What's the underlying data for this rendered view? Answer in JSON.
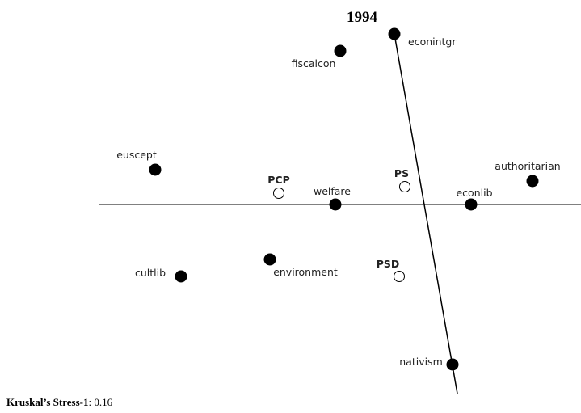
{
  "title": "1994",
  "nodes": [
    {
      "label": "econintgr",
      "kind": "issue"
    },
    {
      "label": "fiscalcon",
      "kind": "issue"
    },
    {
      "label": "euscept",
      "kind": "issue"
    },
    {
      "label": "welfare",
      "kind": "issue"
    },
    {
      "label": "econlib",
      "kind": "issue"
    },
    {
      "label": "authoritarian",
      "kind": "issue"
    },
    {
      "label": "cultlib",
      "kind": "issue"
    },
    {
      "label": "environment",
      "kind": "issue"
    },
    {
      "label": "nativism",
      "kind": "issue"
    },
    {
      "label": "PCP",
      "kind": "party"
    },
    {
      "label": "PS",
      "kind": "party"
    },
    {
      "label": "PSD",
      "kind": "party"
    }
  ],
  "footer": {
    "label": "Kruskal’s Stress-1",
    "text": ": 0.16"
  }
}
